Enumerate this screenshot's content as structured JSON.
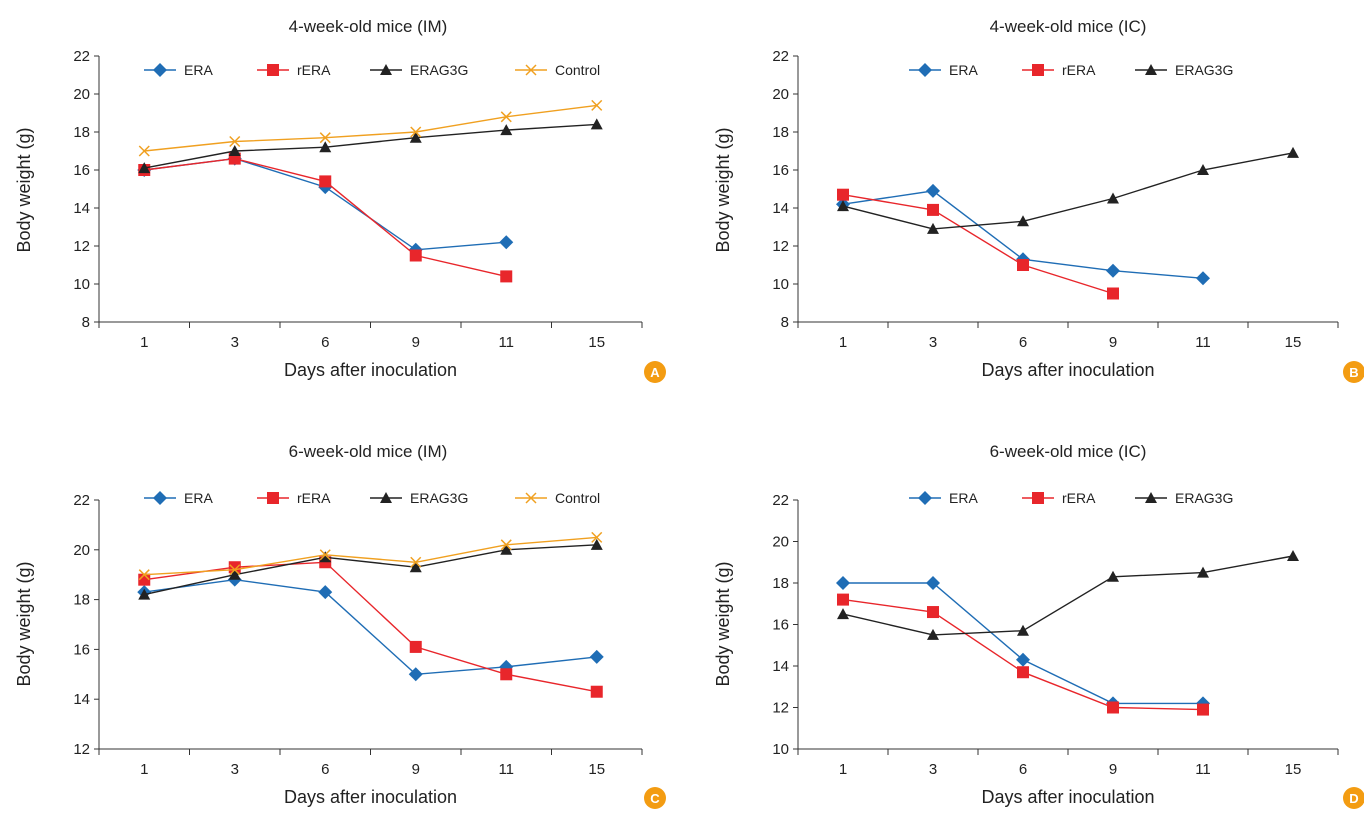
{
  "chart_data": [
    {
      "type": "line",
      "panel_label": "A",
      "title": "4-week-old mice (IM)",
      "xlabel": "Days after inoculation",
      "ylabel": "Body weight (g)",
      "categories": [
        "1",
        "3",
        "6",
        "9",
        "11",
        "15"
      ],
      "ylim": [
        8,
        22
      ],
      "yticks": [
        8,
        10,
        12,
        14,
        16,
        18,
        20,
        22
      ],
      "grid": false,
      "legend_position": "top",
      "series": [
        {
          "name": "ERA",
          "color": "#1f6db5",
          "marker": "diamond",
          "values": [
            16.0,
            16.6,
            15.1,
            11.8,
            12.2,
            null
          ]
        },
        {
          "name": "rERA",
          "color": "#e8262b",
          "marker": "square",
          "values": [
            16.0,
            16.6,
            15.4,
            11.5,
            10.4,
            null
          ]
        },
        {
          "name": "ERAG3G",
          "color": "#222222",
          "marker": "triangle",
          "values": [
            16.1,
            17.0,
            17.2,
            17.7,
            18.1,
            18.4
          ]
        },
        {
          "name": "Control",
          "color": "#f0a020",
          "marker": "x",
          "values": [
            17.0,
            17.5,
            17.7,
            18.0,
            18.8,
            19.4
          ]
        }
      ]
    },
    {
      "type": "line",
      "panel_label": "B",
      "title": "4-week-old mice (IC)",
      "xlabel": "Days after inoculation",
      "ylabel": "Body weight (g)",
      "categories": [
        "1",
        "3",
        "6",
        "9",
        "11",
        "15"
      ],
      "ylim": [
        8,
        22
      ],
      "yticks": [
        8,
        10,
        12,
        14,
        16,
        18,
        20,
        22
      ],
      "grid": false,
      "legend_position": "top",
      "series": [
        {
          "name": "ERA",
          "color": "#1f6db5",
          "marker": "diamond",
          "values": [
            14.2,
            14.9,
            11.3,
            10.7,
            10.3,
            null
          ]
        },
        {
          "name": "rERA",
          "color": "#e8262b",
          "marker": "square",
          "values": [
            14.7,
            13.9,
            11.0,
            9.5,
            null,
            null
          ]
        },
        {
          "name": "ERAG3G",
          "color": "#222222",
          "marker": "triangle",
          "values": [
            14.1,
            12.9,
            13.3,
            14.5,
            16.0,
            16.9
          ]
        }
      ]
    },
    {
      "type": "line",
      "panel_label": "C",
      "title": "6-week-old mice (IM)",
      "xlabel": "Days after inoculation",
      "ylabel": "Body weight (g)",
      "categories": [
        "1",
        "3",
        "6",
        "9",
        "11",
        "15"
      ],
      "ylim": [
        12,
        22
      ],
      "yticks": [
        12,
        14,
        16,
        18,
        20,
        22
      ],
      "grid": false,
      "legend_position": "top",
      "series": [
        {
          "name": "ERA",
          "color": "#1f6db5",
          "marker": "diamond",
          "values": [
            18.3,
            18.8,
            18.3,
            15.0,
            15.3,
            15.7
          ]
        },
        {
          "name": "rERA",
          "color": "#e8262b",
          "marker": "square",
          "values": [
            18.8,
            19.3,
            19.5,
            16.1,
            15.0,
            14.3
          ]
        },
        {
          "name": "ERAG3G",
          "color": "#222222",
          "marker": "triangle",
          "values": [
            18.2,
            19.0,
            19.7,
            19.3,
            20.0,
            20.2
          ]
        },
        {
          "name": "Control",
          "color": "#f0a020",
          "marker": "x",
          "values": [
            19.0,
            19.2,
            19.8,
            19.5,
            20.2,
            20.5
          ]
        }
      ]
    },
    {
      "type": "line",
      "panel_label": "D",
      "title": "6-week-old mice (IC)",
      "xlabel": "Days after inoculation",
      "ylabel": "Body weight (g)",
      "categories": [
        "1",
        "3",
        "6",
        "9",
        "11",
        "15"
      ],
      "ylim": [
        10,
        22
      ],
      "yticks": [
        10,
        12,
        14,
        16,
        18,
        20,
        22
      ],
      "grid": false,
      "legend_position": "top",
      "series": [
        {
          "name": "ERA",
          "color": "#1f6db5",
          "marker": "diamond",
          "values": [
            18.0,
            18.0,
            14.3,
            12.2,
            12.2,
            null
          ]
        },
        {
          "name": "rERA",
          "color": "#e8262b",
          "marker": "square",
          "values": [
            17.2,
            16.6,
            13.7,
            12.0,
            11.9,
            null
          ]
        },
        {
          "name": "ERAG3G",
          "color": "#222222",
          "marker": "triangle",
          "values": [
            16.5,
            15.5,
            15.7,
            18.3,
            18.5,
            19.3
          ]
        }
      ]
    }
  ],
  "badge_color": "#f39c12"
}
